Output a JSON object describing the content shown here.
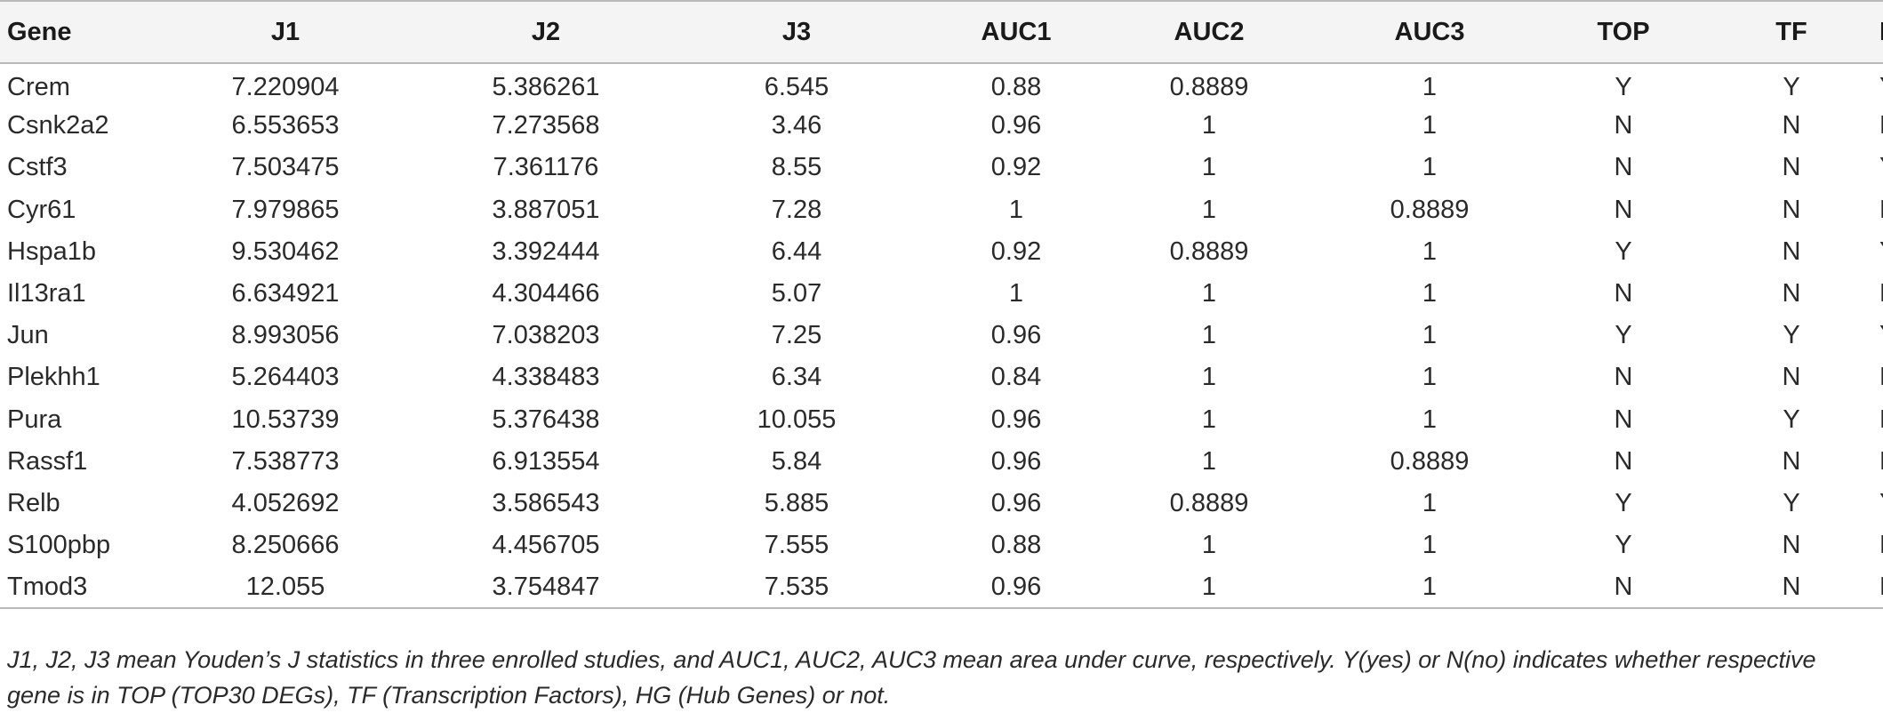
{
  "table": {
    "headers": [
      "Gene",
      "J1",
      "J2",
      "J3",
      "AUC1",
      "AUC2",
      "AUC3",
      "TOP",
      "TF",
      "HG"
    ],
    "rows": [
      [
        "Crem",
        "7.220904",
        "5.386261",
        "6.545",
        "0.88",
        "0.8889",
        "1",
        "Y",
        "Y",
        "Y"
      ],
      [
        "Csnk2a2",
        "6.553653",
        "7.273568",
        "3.46",
        "0.96",
        "1",
        "1",
        "N",
        "N",
        "N"
      ],
      [
        "Cstf3",
        "7.503475",
        "7.361176",
        "8.55",
        "0.92",
        "1",
        "1",
        "N",
        "N",
        "Y"
      ],
      [
        "Cyr61",
        "7.979865",
        "3.887051",
        "7.28",
        "1",
        "1",
        "0.8889",
        "N",
        "N",
        "N"
      ],
      [
        "Hspa1b",
        "9.530462",
        "3.392444",
        "6.44",
        "0.92",
        "0.8889",
        "1",
        "Y",
        "N",
        "Y"
      ],
      [
        "Il13ra1",
        "6.634921",
        "4.304466",
        "5.07",
        "1",
        "1",
        "1",
        "N",
        "N",
        "N"
      ],
      [
        "Jun",
        "8.993056",
        "7.038203",
        "7.25",
        "0.96",
        "1",
        "1",
        "Y",
        "Y",
        "Y"
      ],
      [
        "Plekhh1",
        "5.264403",
        "4.338483",
        "6.34",
        "0.84",
        "1",
        "1",
        "N",
        "N",
        "N"
      ],
      [
        "Pura",
        "10.53739",
        "5.376438",
        "10.055",
        "0.96",
        "1",
        "1",
        "N",
        "Y",
        "N"
      ],
      [
        "Rassf1",
        "7.538773",
        "6.913554",
        "5.84",
        "0.96",
        "1",
        "0.8889",
        "N",
        "N",
        "N"
      ],
      [
        "Relb",
        "4.052692",
        "3.586543",
        "5.885",
        "0.96",
        "0.8889",
        "1",
        "Y",
        "Y",
        "Y"
      ],
      [
        "S100pbp",
        "8.250666",
        "4.456705",
        "7.555",
        "0.88",
        "1",
        "1",
        "Y",
        "N",
        "N"
      ],
      [
        "Tmod3",
        "12.055",
        "3.754847",
        "7.535",
        "0.96",
        "1",
        "1",
        "N",
        "N",
        "N"
      ]
    ]
  },
  "footnote": {
    "line1": "J1, J2, J3 mean Youden’s J statistics in three enrolled studies, and AUC1, AUC2, AUC3 mean area under curve, respectively. Y(yes) or N(no) indicates whether respective",
    "line2": "gene is in TOP (TOP30 DEGs), TF (Transcription Factors), HG (Hub Genes) or not."
  }
}
